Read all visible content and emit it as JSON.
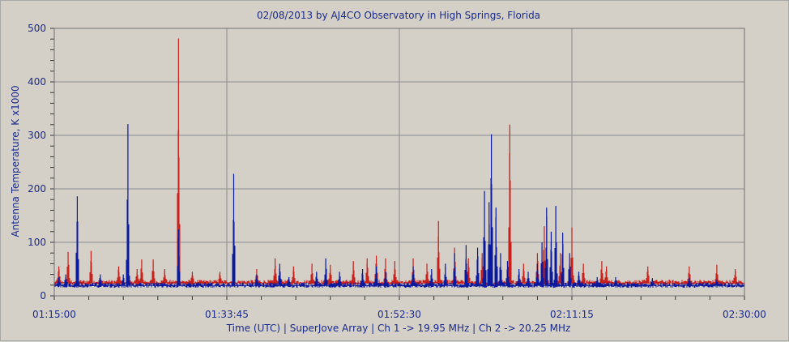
{
  "chart_data": {
    "type": "line",
    "title": "02/08/2013  by  AJ4CO Observatory  in  High Springs, Florida",
    "xlabel": "Time (UTC)  |  SuperJove Array  |  Ch 1 -> 19.95 MHz  |  Ch 2 -> 20.25 MHz",
    "ylabel": "Antenna Temperature, K x1000",
    "x_range": [
      "01:15:00",
      "02:30:00"
    ],
    "x_ticks": [
      "01:15:00",
      "01:33:45",
      "01:52:30",
      "02:11:15",
      "02:30:00"
    ],
    "ylim": [
      0,
      500
    ],
    "y_ticks": [
      "0",
      "100",
      "200",
      "300",
      "400",
      "500"
    ],
    "grid": true,
    "colors": {
      "ch1": "#0a1a9e",
      "ch2": "#c8201a",
      "grid": "#8c8c8c",
      "plot_bg": "#d4d0c8"
    },
    "series": [
      {
        "baseline": 22,
        "color": "#0a1a9e",
        "peaks": [
          {
            "x": "01:15:30",
            "y": 35
          },
          {
            "x": "01:16:15",
            "y": 40
          },
          {
            "x": "01:17:30",
            "y": 186
          },
          {
            "x": "01:20:00",
            "y": 40
          },
          {
            "x": "01:22:30",
            "y": 40
          },
          {
            "x": "01:23:00",
            "y": 321
          },
          {
            "x": "01:28:30",
            "y": 124
          },
          {
            "x": "01:34:30",
            "y": 228
          },
          {
            "x": "01:37:00",
            "y": 40
          },
          {
            "x": "01:39:30",
            "y": 60
          },
          {
            "x": "01:40:30",
            "y": 35
          },
          {
            "x": "01:43:30",
            "y": 45
          },
          {
            "x": "01:44:30",
            "y": 70
          },
          {
            "x": "01:46:00",
            "y": 45
          },
          {
            "x": "01:48:30",
            "y": 50
          },
          {
            "x": "01:50:00",
            "y": 55
          },
          {
            "x": "01:51:00",
            "y": 45
          },
          {
            "x": "01:54:00",
            "y": 55
          },
          {
            "x": "01:56:00",
            "y": 50
          },
          {
            "x": "01:57:30",
            "y": 60
          },
          {
            "x": "01:58:30",
            "y": 80
          },
          {
            "x": "01:59:45",
            "y": 95
          },
          {
            "x": "02:01:00",
            "y": 90
          },
          {
            "x": "02:01:45",
            "y": 196
          },
          {
            "x": "02:02:15",
            "y": 175
          },
          {
            "x": "02:02:30",
            "y": 302
          },
          {
            "x": "02:03:00",
            "y": 165
          },
          {
            "x": "02:03:30",
            "y": 80
          },
          {
            "x": "02:04:15",
            "y": 65
          },
          {
            "x": "02:05:30",
            "y": 50
          },
          {
            "x": "02:06:30",
            "y": 45
          },
          {
            "x": "02:07:30",
            "y": 60
          },
          {
            "x": "02:08:00",
            "y": 100
          },
          {
            "x": "02:08:30",
            "y": 165
          },
          {
            "x": "02:09:00",
            "y": 120
          },
          {
            "x": "02:09:30",
            "y": 168
          },
          {
            "x": "02:10:15",
            "y": 118
          },
          {
            "x": "02:11:00",
            "y": 80
          },
          {
            "x": "02:12:00",
            "y": 45
          },
          {
            "x": "02:14:00",
            "y": 35
          },
          {
            "x": "02:16:00",
            "y": 35
          },
          {
            "x": "02:20:00",
            "y": 33
          },
          {
            "x": "02:24:00",
            "y": 33
          },
          {
            "x": "02:27:00",
            "y": 30
          }
        ]
      },
      {
        "baseline": 27,
        "color": "#c8201a",
        "peaks": [
          {
            "x": "01:15:30",
            "y": 55
          },
          {
            "x": "01:16:30",
            "y": 82
          },
          {
            "x": "01:19:00",
            "y": 84
          },
          {
            "x": "01:22:00",
            "y": 55
          },
          {
            "x": "01:24:00",
            "y": 50
          },
          {
            "x": "01:24:30",
            "y": 68
          },
          {
            "x": "01:25:45",
            "y": 68
          },
          {
            "x": "01:27:00",
            "y": 50
          },
          {
            "x": "01:28:30",
            "y": 481
          },
          {
            "x": "01:30:00",
            "y": 45
          },
          {
            "x": "01:33:00",
            "y": 45
          },
          {
            "x": "01:37:00",
            "y": 50
          },
          {
            "x": "01:39:00",
            "y": 70
          },
          {
            "x": "01:41:00",
            "y": 55
          },
          {
            "x": "01:43:00",
            "y": 60
          },
          {
            "x": "01:45:00",
            "y": 58
          },
          {
            "x": "01:47:30",
            "y": 65
          },
          {
            "x": "01:49:00",
            "y": 70
          },
          {
            "x": "01:50:00",
            "y": 75
          },
          {
            "x": "01:51:00",
            "y": 70
          },
          {
            "x": "01:52:00",
            "y": 65
          },
          {
            "x": "01:54:00",
            "y": 70
          },
          {
            "x": "01:55:30",
            "y": 60
          },
          {
            "x": "01:56:45",
            "y": 140
          },
          {
            "x": "01:58:30",
            "y": 90
          },
          {
            "x": "02:00:00",
            "y": 70
          },
          {
            "x": "02:01:30",
            "y": 80
          },
          {
            "x": "02:02:30",
            "y": 70
          },
          {
            "x": "02:04:30",
            "y": 320
          },
          {
            "x": "02:06:00",
            "y": 60
          },
          {
            "x": "02:07:30",
            "y": 80
          },
          {
            "x": "02:08:15",
            "y": 130
          },
          {
            "x": "02:09:00",
            "y": 100
          },
          {
            "x": "02:10:00",
            "y": 80
          },
          {
            "x": "02:11:15",
            "y": 128
          },
          {
            "x": "02:12:30",
            "y": 60
          },
          {
            "x": "02:14:30",
            "y": 65
          },
          {
            "x": "02:15:00",
            "y": 55
          },
          {
            "x": "02:19:30",
            "y": 55
          },
          {
            "x": "02:24:00",
            "y": 55
          },
          {
            "x": "02:27:00",
            "y": 58
          },
          {
            "x": "02:29:00",
            "y": 50
          }
        ]
      }
    ]
  }
}
